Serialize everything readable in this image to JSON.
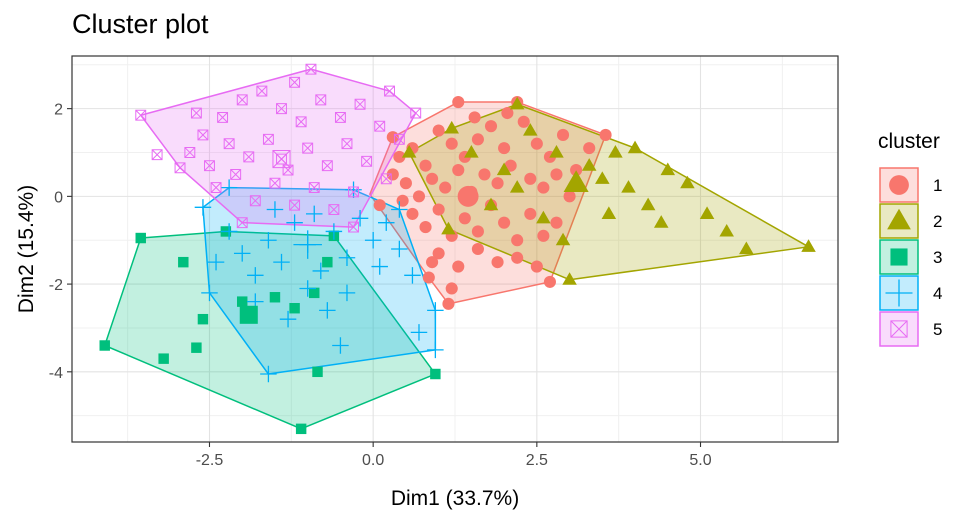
{
  "chart_data": {
    "type": "scatter",
    "title": "Cluster plot",
    "xlabel": "Dim1 (33.7%)",
    "ylabel": "Dim2 (15.4%)",
    "xlim": [
      -4.6,
      7.1
    ],
    "ylim": [
      -5.6,
      3.2
    ],
    "x_ticks": [
      -2.5,
      0.0,
      2.5,
      5.0
    ],
    "x_tick_labels": [
      "-2.5",
      "0.0",
      "2.5",
      "5.0"
    ],
    "y_ticks": [
      -4,
      -2,
      0,
      2
    ],
    "y_tick_labels": [
      "-4",
      "-2",
      "0",
      "2"
    ],
    "grid": true,
    "legend": {
      "title": "cluster",
      "position": "right"
    },
    "series": [
      {
        "name": "1",
        "color": "#F8766D",
        "shape": "circle",
        "center": [
          1.45,
          0.0
        ],
        "hull": [
          [
            -0.05,
            0.05
          ],
          [
            0.3,
            1.35
          ],
          [
            1.3,
            2.15
          ],
          [
            2.2,
            2.15
          ],
          [
            3.55,
            1.4
          ],
          [
            2.7,
            -1.95
          ],
          [
            1.15,
            -2.45
          ],
          [
            0.85,
            -1.85
          ]
        ],
        "points": [
          [
            0.3,
            1.35
          ],
          [
            1.3,
            2.15
          ],
          [
            2.2,
            2.15
          ],
          [
            3.55,
            1.4
          ],
          [
            2.7,
            -1.95
          ],
          [
            1.15,
            -2.45
          ],
          [
            0.85,
            -1.85
          ],
          [
            0.1,
            -0.2
          ],
          [
            0.4,
            0.9
          ],
          [
            0.6,
            1.1
          ],
          [
            0.8,
            0.7
          ],
          [
            1.0,
            1.5
          ],
          [
            1.2,
            1.2
          ],
          [
            1.4,
            0.9
          ],
          [
            1.6,
            1.3
          ],
          [
            1.8,
            1.6
          ],
          [
            2.0,
            1.1
          ],
          [
            2.3,
            1.7
          ],
          [
            2.5,
            1.2
          ],
          [
            2.7,
            0.9
          ],
          [
            2.9,
            1.4
          ],
          [
            3.1,
            0.6
          ],
          [
            3.3,
            1.1
          ],
          [
            0.5,
            0.3
          ],
          [
            0.7,
            0.0
          ],
          [
            0.9,
            0.4
          ],
          [
            1.1,
            0.2
          ],
          [
            1.3,
            0.6
          ],
          [
            1.5,
            0.1
          ],
          [
            1.7,
            0.5
          ],
          [
            1.9,
            0.3
          ],
          [
            2.1,
            0.7
          ],
          [
            2.4,
            0.4
          ],
          [
            2.6,
            0.2
          ],
          [
            2.8,
            0.5
          ],
          [
            3.0,
            0.0
          ],
          [
            0.6,
            -0.4
          ],
          [
            0.8,
            -0.7
          ],
          [
            1.0,
            -0.3
          ],
          [
            1.2,
            -0.9
          ],
          [
            1.4,
            -0.5
          ],
          [
            1.6,
            -0.8
          ],
          [
            1.8,
            -0.2
          ],
          [
            2.0,
            -0.6
          ],
          [
            2.2,
            -1.0
          ],
          [
            2.4,
            -0.4
          ],
          [
            2.6,
            -0.9
          ],
          [
            2.8,
            -0.6
          ],
          [
            1.0,
            -1.3
          ],
          [
            1.3,
            -1.6
          ],
          [
            1.6,
            -1.2
          ],
          [
            1.9,
            -1.5
          ],
          [
            2.2,
            -1.4
          ],
          [
            2.5,
            -1.6
          ],
          [
            1.2,
            -2.1
          ],
          [
            0.9,
            -1.5
          ],
          [
            0.3,
            0.5
          ],
          [
            0.45,
            -0.1
          ],
          [
            1.55,
            1.8
          ],
          [
            2.05,
            1.9
          ]
        ]
      },
      {
        "name": "2",
        "color": "#A3A500",
        "shape": "triangle",
        "center": [
          3.1,
          0.3
        ],
        "hull": [
          [
            0.55,
            1.0
          ],
          [
            1.2,
            1.55
          ],
          [
            2.2,
            2.1
          ],
          [
            4.0,
            1.1
          ],
          [
            6.65,
            -1.15
          ],
          [
            3.0,
            -1.9
          ],
          [
            1.15,
            -0.75
          ]
        ],
        "points": [
          [
            0.55,
            1.0
          ],
          [
            1.2,
            1.55
          ],
          [
            2.2,
            2.1
          ],
          [
            4.0,
            1.1
          ],
          [
            6.65,
            -1.15
          ],
          [
            3.0,
            -1.9
          ],
          [
            1.15,
            -0.75
          ],
          [
            1.5,
            1.0
          ],
          [
            2.0,
            0.6
          ],
          [
            2.4,
            1.5
          ],
          [
            2.8,
            1.0
          ],
          [
            3.1,
            0.3
          ],
          [
            3.3,
            0.7
          ],
          [
            3.5,
            0.4
          ],
          [
            3.7,
            1.0
          ],
          [
            3.9,
            0.2
          ],
          [
            3.6,
            -0.4
          ],
          [
            4.2,
            -0.2
          ],
          [
            4.5,
            0.6
          ],
          [
            4.8,
            0.3
          ],
          [
            5.1,
            -0.4
          ],
          [
            5.4,
            -0.8
          ],
          [
            5.7,
            -1.2
          ],
          [
            4.4,
            -0.6
          ],
          [
            2.6,
            -0.5
          ],
          [
            2.9,
            -1.0
          ],
          [
            1.8,
            -0.2
          ],
          [
            2.2,
            0.2
          ]
        ]
      },
      {
        "name": "3",
        "color": "#00BF7D",
        "shape": "square",
        "center": [
          -1.9,
          -2.7
        ],
        "hull": [
          [
            -3.55,
            -0.95
          ],
          [
            -2.25,
            -0.8
          ],
          [
            -0.6,
            -0.9
          ],
          [
            0.95,
            -4.05
          ],
          [
            -1.1,
            -5.3
          ],
          [
            -4.1,
            -3.4
          ]
        ],
        "points": [
          [
            -3.55,
            -0.95
          ],
          [
            -2.25,
            -0.8
          ],
          [
            -0.6,
            -0.9
          ],
          [
            0.95,
            -4.05
          ],
          [
            -1.1,
            -5.3
          ],
          [
            -4.1,
            -3.4
          ],
          [
            -2.6,
            -2.8
          ],
          [
            -3.2,
            -3.7
          ],
          [
            -2.7,
            -3.45
          ],
          [
            -2.0,
            -2.4
          ],
          [
            -1.5,
            -2.3
          ],
          [
            -1.2,
            -2.55
          ],
          [
            -0.9,
            -2.2
          ],
          [
            -0.7,
            -1.5
          ],
          [
            -0.85,
            -4.0
          ],
          [
            -2.9,
            -1.5
          ],
          [
            -1.9,
            -2.7
          ]
        ]
      },
      {
        "name": "4",
        "color": "#00B0F6",
        "shape": "plus",
        "center": [
          -1.0,
          -1.1
        ],
        "hull": [
          [
            -2.6,
            -0.25
          ],
          [
            -2.2,
            0.2
          ],
          [
            -0.3,
            0.15
          ],
          [
            0.4,
            -0.3
          ],
          [
            0.95,
            -2.6
          ],
          [
            0.95,
            -3.5
          ],
          [
            -1.6,
            -4.05
          ],
          [
            -2.5,
            -2.2
          ]
        ],
        "points": [
          [
            -2.6,
            -0.25
          ],
          [
            -2.2,
            0.2
          ],
          [
            -0.3,
            0.15
          ],
          [
            0.4,
            -0.3
          ],
          [
            0.95,
            -2.6
          ],
          [
            0.95,
            -3.5
          ],
          [
            -1.6,
            -4.05
          ],
          [
            -2.5,
            -2.2
          ],
          [
            -2.2,
            -0.8
          ],
          [
            -2.0,
            -1.3
          ],
          [
            -1.8,
            -1.8
          ],
          [
            -1.6,
            -1.0
          ],
          [
            -1.4,
            -1.5
          ],
          [
            -1.2,
            -0.6
          ],
          [
            -1.0,
            -1.1
          ],
          [
            -0.8,
            -1.7
          ],
          [
            -0.6,
            -0.8
          ],
          [
            -0.4,
            -1.4
          ],
          [
            -0.2,
            -0.5
          ],
          [
            0.0,
            -1.0
          ],
          [
            0.2,
            -0.6
          ],
          [
            0.4,
            -1.2
          ],
          [
            0.6,
            -1.8
          ],
          [
            -1.0,
            -2.1
          ],
          [
            -0.7,
            -2.6
          ],
          [
            -0.4,
            -2.2
          ],
          [
            -1.3,
            -2.8
          ],
          [
            -1.8,
            -2.4
          ],
          [
            -0.5,
            -3.4
          ],
          [
            0.7,
            -3.1
          ],
          [
            -2.4,
            -1.5
          ],
          [
            -1.5,
            -0.3
          ],
          [
            -0.9,
            -0.4
          ],
          [
            0.1,
            -1.6
          ]
        ]
      },
      {
        "name": "5",
        "color": "#E76BF3",
        "shape": "square-x",
        "center": [
          -1.4,
          0.85
        ],
        "hull": [
          [
            -3.55,
            1.85
          ],
          [
            -0.95,
            2.9
          ],
          [
            0.25,
            2.4
          ],
          [
            0.65,
            1.9
          ],
          [
            -0.3,
            -0.7
          ],
          [
            -2.0,
            -0.6
          ],
          [
            -2.95,
            0.65
          ]
        ],
        "points": [
          [
            -3.55,
            1.85
          ],
          [
            -0.95,
            2.9
          ],
          [
            0.25,
            2.4
          ],
          [
            0.65,
            1.9
          ],
          [
            -0.3,
            -0.7
          ],
          [
            -2.0,
            -0.6
          ],
          [
            -2.95,
            0.65
          ],
          [
            -3.3,
            0.95
          ],
          [
            -2.6,
            1.4
          ],
          [
            -2.3,
            1.8
          ],
          [
            -2.0,
            2.2
          ],
          [
            -1.7,
            2.4
          ],
          [
            -1.4,
            2.0
          ],
          [
            -1.1,
            1.7
          ],
          [
            -0.8,
            2.2
          ],
          [
            -0.5,
            1.8
          ],
          [
            -0.2,
            2.1
          ],
          [
            0.1,
            1.6
          ],
          [
            0.4,
            1.3
          ],
          [
            -2.8,
            1.0
          ],
          [
            -2.5,
            0.7
          ],
          [
            -2.2,
            1.2
          ],
          [
            -1.9,
            0.9
          ],
          [
            -1.6,
            1.3
          ],
          [
            -1.3,
            0.6
          ],
          [
            -1.0,
            1.1
          ],
          [
            -0.7,
            0.7
          ],
          [
            -0.4,
            1.2
          ],
          [
            -0.1,
            0.8
          ],
          [
            0.2,
            0.4
          ],
          [
            -2.4,
            0.2
          ],
          [
            -2.1,
            0.5
          ],
          [
            -1.8,
            -0.1
          ],
          [
            -1.5,
            0.3
          ],
          [
            -1.2,
            -0.2
          ],
          [
            -0.9,
            0.2
          ],
          [
            -0.6,
            -0.3
          ],
          [
            -0.3,
            0.1
          ],
          [
            -1.4,
            0.85
          ],
          [
            -2.7,
            1.9
          ],
          [
            -1.2,
            2.6
          ]
        ]
      }
    ]
  }
}
